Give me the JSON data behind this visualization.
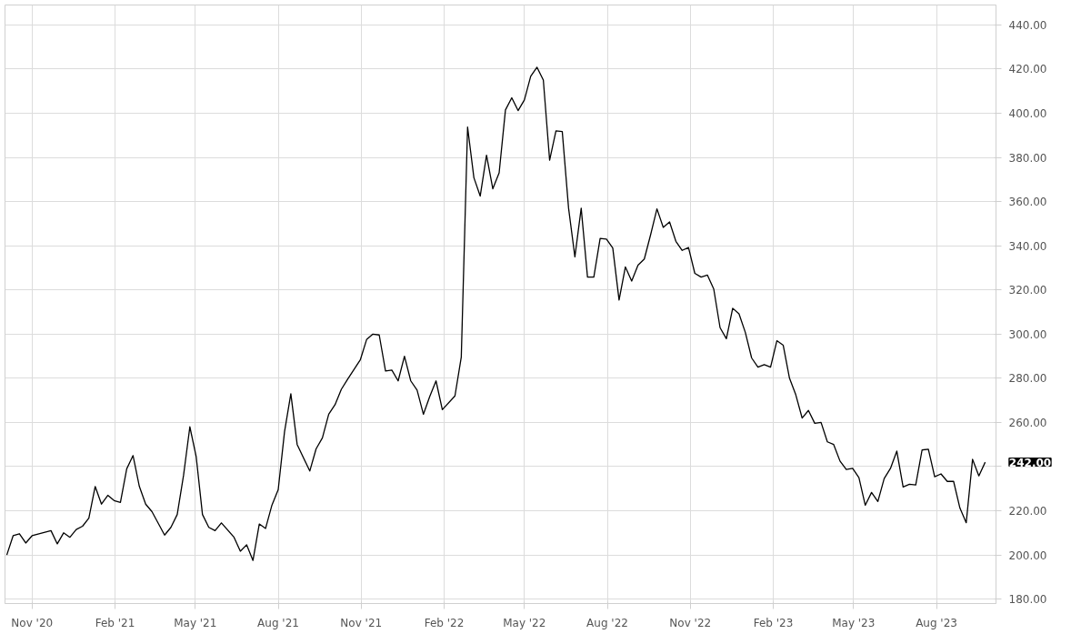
{
  "chart_data": {
    "type": "line",
    "x": [
      "2020-10-04",
      "2020-10-11",
      "2020-10-18",
      "2020-10-25",
      "2020-11-01",
      "2020-11-22",
      "2020-11-29",
      "2020-12-06",
      "2020-12-13",
      "2020-12-20",
      "2020-12-27",
      "2021-01-03",
      "2021-01-10",
      "2021-01-17",
      "2021-01-24",
      "2021-01-31",
      "2021-02-07",
      "2021-02-14",
      "2021-02-21",
      "2021-02-28",
      "2021-03-07",
      "2021-03-14",
      "2021-03-28",
      "2021-04-04",
      "2021-04-11",
      "2021-04-18",
      "2021-04-25",
      "2021-05-02",
      "2021-05-09",
      "2021-05-16",
      "2021-05-23",
      "2021-05-30",
      "2021-06-13",
      "2021-06-20",
      "2021-06-27",
      "2021-07-04",
      "2021-07-11",
      "2021-07-18",
      "2021-07-25",
      "2021-08-01",
      "2021-08-08",
      "2021-08-15",
      "2021-08-22",
      "2021-09-05",
      "2021-09-12",
      "2021-09-19",
      "2021-09-26",
      "2021-10-03",
      "2021-10-10",
      "2021-10-17",
      "2021-10-31",
      "2021-11-07",
      "2021-11-14",
      "2021-11-21",
      "2021-11-28",
      "2021-12-05",
      "2021-12-12",
      "2021-12-19",
      "2021-12-26",
      "2022-01-02",
      "2022-01-09",
      "2022-01-16",
      "2022-01-23",
      "2022-01-30",
      "2022-02-13",
      "2022-02-20",
      "2022-02-27",
      "2022-03-06",
      "2022-03-13",
      "2022-03-20",
      "2022-03-27",
      "2022-04-03",
      "2022-04-10",
      "2022-04-17",
      "2022-04-24",
      "2022-05-01",
      "2022-05-08",
      "2022-05-15",
      "2022-05-22",
      "2022-05-29",
      "2022-06-05",
      "2022-06-12",
      "2022-06-19",
      "2022-06-26",
      "2022-07-03",
      "2022-07-10",
      "2022-07-17",
      "2022-07-24",
      "2022-07-31",
      "2022-08-07",
      "2022-08-14",
      "2022-08-21",
      "2022-08-28",
      "2022-09-04",
      "2022-09-11",
      "2022-09-18",
      "2022-09-25",
      "2022-10-02",
      "2022-10-09",
      "2022-10-16",
      "2022-10-23",
      "2022-10-30",
      "2022-11-06",
      "2022-11-13",
      "2022-11-20",
      "2022-11-27",
      "2022-12-04",
      "2022-12-11",
      "2022-12-18",
      "2022-12-25",
      "2023-01-01",
      "2023-01-08",
      "2023-01-15",
      "2023-01-22",
      "2023-01-29",
      "2023-02-05",
      "2023-02-12",
      "2023-02-19",
      "2023-02-26",
      "2023-03-05",
      "2023-03-12",
      "2023-03-19",
      "2023-03-26",
      "2023-04-02",
      "2023-04-09",
      "2023-04-16",
      "2023-04-23",
      "2023-04-30",
      "2023-05-07",
      "2023-05-14",
      "2023-05-21",
      "2023-05-28",
      "2023-06-04",
      "2023-06-11",
      "2023-06-18",
      "2023-06-25",
      "2023-07-02",
      "2023-07-09",
      "2023-07-16",
      "2023-07-23",
      "2023-07-30",
      "2023-08-06",
      "2023-08-13",
      "2023-08-20",
      "2023-08-27",
      "2023-09-03",
      "2023-09-10",
      "2023-09-17",
      "2023-09-24"
    ],
    "series": [
      {
        "color": "#000000",
        "values": [
          200,
          208.7,
          209.6,
          205.4,
          208.7,
          211,
          205,
          210,
          208,
          211.5,
          213,
          216.7,
          231,
          223,
          227,
          224.6,
          223.8,
          239,
          245,
          231,
          223,
          219.6,
          209,
          212.5,
          218.3,
          236,
          258,
          244.6,
          218.3,
          212.5,
          211,
          214.5,
          208,
          201.7,
          204.6,
          197.5,
          214,
          212,
          222.5,
          229.6,
          255.8,
          273,
          250,
          238,
          248,
          253,
          263.7,
          268,
          275,
          279.6,
          288.3,
          297.5,
          300,
          299.6,
          283.3,
          283.7,
          278.8,
          290,
          278.8,
          274.6,
          263.7,
          271.7,
          278.8,
          265.8,
          272,
          289.6,
          393.7,
          370.8,
          362.5,
          381,
          365.8,
          373,
          401.5,
          407,
          401.2,
          406,
          416.7,
          420.8,
          415,
          378.7,
          392,
          391.7,
          357,
          335,
          357,
          325.8,
          325.8,
          343.3,
          343,
          339,
          315.4,
          330.4,
          324,
          331.2,
          334,
          345,
          356.7,
          348.3,
          350.8,
          342,
          337.9,
          339.2,
          327.5,
          325.8,
          326.7,
          320.4,
          302.9,
          297.9,
          311.7,
          309.2,
          300.8,
          289.2,
          285,
          286.2,
          285,
          297,
          295,
          280,
          272.5,
          262,
          265.4,
          259.6,
          260,
          251.2,
          250,
          242.5,
          238.7,
          239.2,
          235,
          222.5,
          228.3,
          224.2,
          234.6,
          239.2,
          247,
          230.8,
          232,
          231.7,
          247.5,
          247.9,
          235.4,
          236.7,
          233.3,
          233.3,
          221.2,
          214.6,
          243.3,
          235.8,
          242
        ]
      }
    ],
    "xlim": [
      "2020-10-02",
      "2023-10-06"
    ],
    "xticks": [
      {
        "value": "2020-11-01",
        "label": "Nov '20"
      },
      {
        "value": "2021-02-01",
        "label": "Feb '21"
      },
      {
        "value": "2021-05-01",
        "label": "May '21"
      },
      {
        "value": "2021-08-01",
        "label": "Aug '21"
      },
      {
        "value": "2021-11-01",
        "label": "Nov '21"
      },
      {
        "value": "2022-02-01",
        "label": "Feb '22"
      },
      {
        "value": "2022-05-01",
        "label": "May '22"
      },
      {
        "value": "2022-08-01",
        "label": "Aug '22"
      },
      {
        "value": "2022-11-01",
        "label": "Nov '22"
      },
      {
        "value": "2023-02-01",
        "label": "Feb '23"
      },
      {
        "value": "2023-05-01",
        "label": "May '23"
      },
      {
        "value": "2023-08-01",
        "label": "Aug '23"
      }
    ],
    "ylim": [
      178,
      449
    ],
    "yticks": [
      {
        "value": 180,
        "label": "180.00"
      },
      {
        "value": 200,
        "label": "200.00"
      },
      {
        "value": 220,
        "label": "220.00"
      },
      {
        "value": 240,
        "label": null
      },
      {
        "value": 260,
        "label": "260.00"
      },
      {
        "value": 280,
        "label": "280.00"
      },
      {
        "value": 300,
        "label": "300.00"
      },
      {
        "value": 320,
        "label": "320.00"
      },
      {
        "value": 340,
        "label": "340.00"
      },
      {
        "value": 360,
        "label": "360.00"
      },
      {
        "value": 380,
        "label": "380.00"
      },
      {
        "value": 400,
        "label": "400.00"
      },
      {
        "value": 420,
        "label": "420.00"
      },
      {
        "value": 440,
        "label": "440.00"
      }
    ],
    "annotations": [
      {
        "text": "242.00",
        "x": "2023-09-24",
        "y": 242
      }
    ],
    "grid": true,
    "marker": "none",
    "line_style": "solid"
  }
}
